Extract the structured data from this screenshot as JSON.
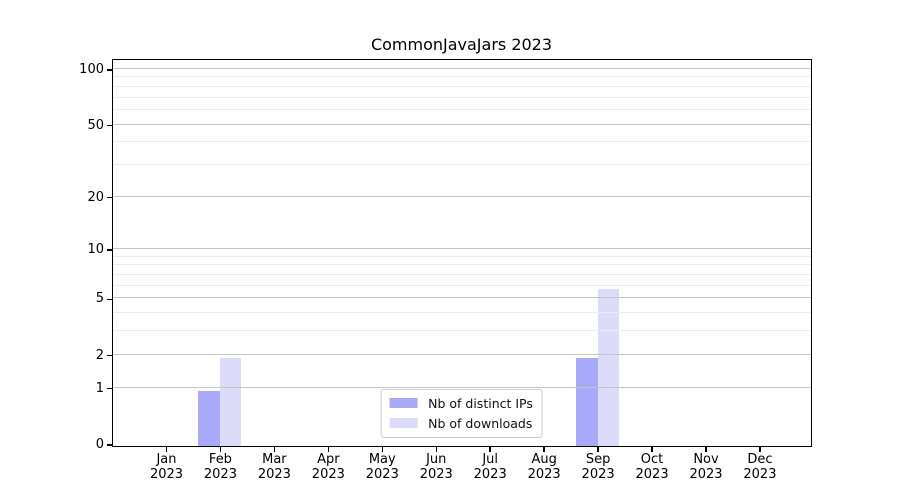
{
  "chart_data": {
    "type": "bar",
    "title": "CommonJavaJars 2023",
    "yscale": "log1p",
    "grid": true,
    "legend_position": "lower center",
    "x_tick_second_line": "2023",
    "categories": [
      "Jan",
      "Feb",
      "Mar",
      "Apr",
      "May",
      "Jun",
      "Jul",
      "Aug",
      "Sep",
      "Oct",
      "Nov",
      "Dec"
    ],
    "series": [
      {
        "name": "Nb of distinct IPs",
        "color": "#a9a9f9",
        "values": [
          0,
          1,
          0,
          0,
          0,
          0,
          0,
          0,
          2,
          0,
          0,
          0
        ]
      },
      {
        "name": "Nb of downloads",
        "color": "#dcdbf9",
        "values": [
          0,
          2,
          0,
          0,
          0,
          0,
          0,
          0,
          6,
          0,
          0,
          0
        ]
      }
    ],
    "y_major_ticks": [
      0,
      1,
      2,
      5,
      10,
      20,
      50,
      100
    ],
    "y_minor_gridlines": [
      3,
      4,
      6,
      7,
      8,
      9,
      30,
      40,
      60,
      70,
      80,
      90
    ],
    "ylim": [
      0,
      110
    ],
    "colors": {
      "major_grid": "#c6c6c6",
      "minor_grid": "#ececec",
      "spine": "#000000",
      "text": "#000000",
      "legend_border": "#cbcbcb"
    }
  }
}
